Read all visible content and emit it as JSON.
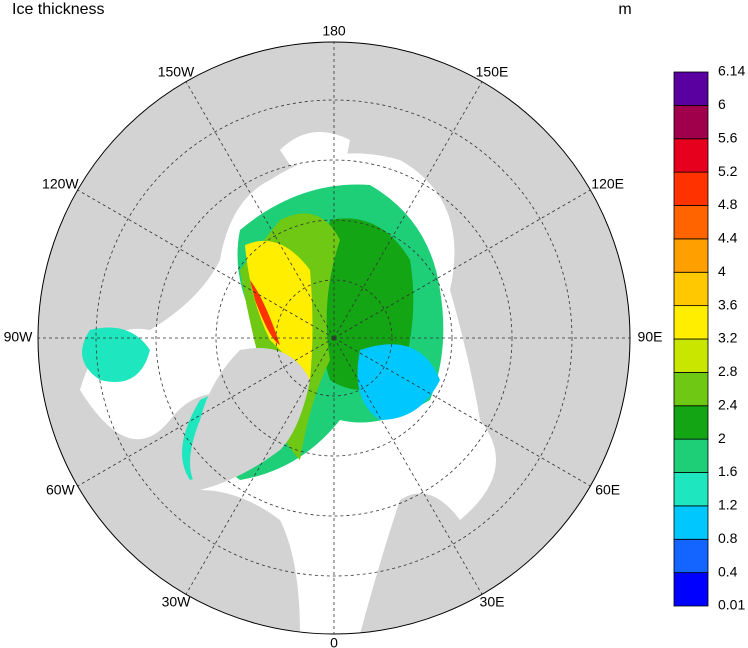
{
  "title": "Ice thickness",
  "units": "m",
  "longitude_labels": [
    "180",
    "150E",
    "120E",
    "90E",
    "60E",
    "30E",
    "0",
    "30W",
    "60W",
    "90W",
    "120W",
    "150W"
  ],
  "colorbar": {
    "levels": [
      0.01,
      0.4,
      0.8,
      1.2,
      1.6,
      2,
      2.4,
      2.8,
      3.2,
      3.6,
      4,
      4.4,
      4.8,
      5.2,
      5.6,
      6,
      6.14
    ],
    "colors": [
      "#0000ff",
      "#1464ff",
      "#00c8ff",
      "#1ee6be",
      "#1ecf78",
      "#14a514",
      "#6ec814",
      "#c8e600",
      "#ffee00",
      "#ffc800",
      "#ffa000",
      "#ff6400",
      "#ff3200",
      "#e6001e",
      "#a0004b",
      "#5a00a0"
    ]
  }
}
